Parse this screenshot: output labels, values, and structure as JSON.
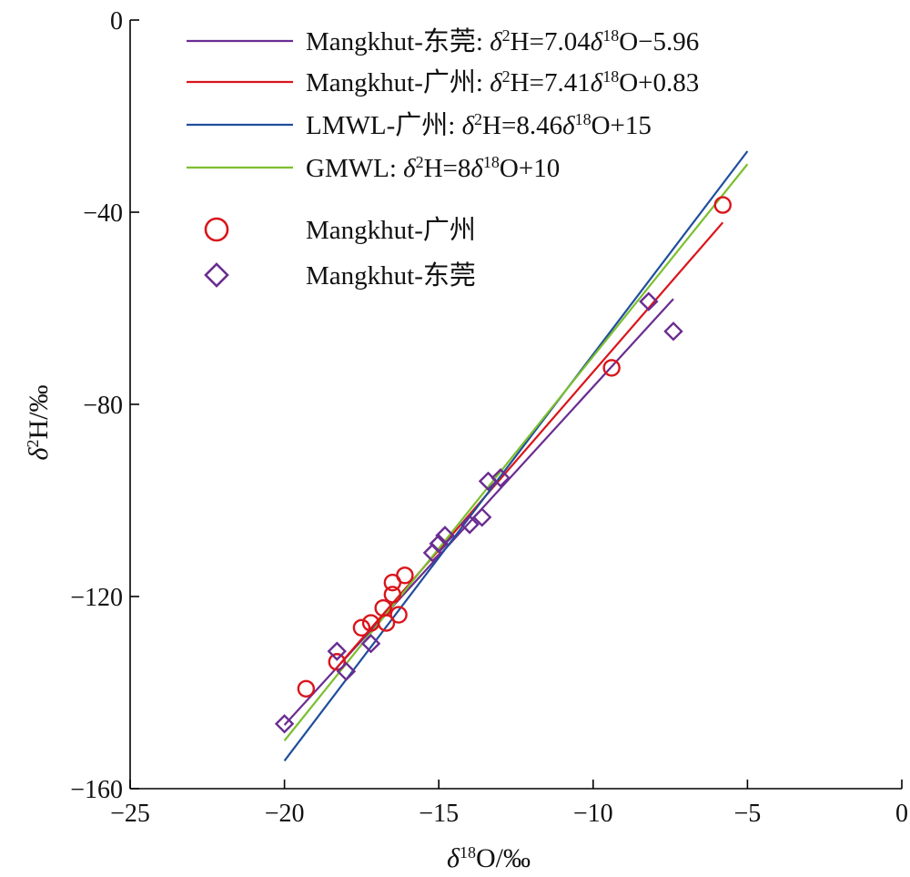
{
  "chart_data": {
    "type": "scatter",
    "xlabel": "δ¹⁸O/‰",
    "ylabel": "δ²H/‰",
    "xlim": [
      -25,
      0
    ],
    "ylim": [
      -160,
      0
    ],
    "xticks": [
      -25,
      -20,
      -15,
      -10,
      -5,
      0
    ],
    "yticks": [
      -160,
      -120,
      -80,
      -40,
      0
    ],
    "xtick_labels": [
      "−25",
      "−20",
      "−15",
      "−10",
      "−5",
      "0"
    ],
    "ytick_labels": [
      "−160",
      "−120",
      "−80",
      "−40",
      "0"
    ],
    "legend_position": "top-left",
    "lines": [
      {
        "name": "Mangkhut-东莞",
        "equation": "δ²H=7.04δ¹⁸O−5.96",
        "color": "#6a2c91",
        "slope": 7.04,
        "intercept": -5.96,
        "x_range": [
          -20.0,
          -7.4
        ]
      },
      {
        "name": "Mangkhut-广州",
        "equation": "δ²H=7.41δ¹⁸O+0.83",
        "color": "#d9151b",
        "slope": 7.41,
        "intercept": 0.83,
        "x_range": [
          -18.3,
          -5.8
        ]
      },
      {
        "name": "LMWL-广州",
        "equation": "δ²H=8.46δ¹⁸O+15",
        "color": "#1f4e9c",
        "slope": 8.46,
        "intercept": 15,
        "x_range": [
          -20.0,
          -5.0
        ]
      },
      {
        "name": "GMWL",
        "equation": "δ²H=8δ¹⁸O+10",
        "color": "#7cbf2e",
        "slope": 8,
        "intercept": 10,
        "x_range": [
          -20.0,
          -5.0
        ]
      }
    ],
    "series": [
      {
        "name": "Mangkhut-广州",
        "marker": "circle",
        "color": "#d9151b",
        "x": [
          -19.3,
          -18.3,
          -17.5,
          -17.2,
          -16.8,
          -16.7,
          -16.5,
          -16.5,
          -16.3,
          -16.1,
          -9.4,
          -5.8
        ],
        "y": [
          -139.2,
          -133.6,
          -126.5,
          -125.5,
          -122.4,
          -125.5,
          -119.6,
          -117.1,
          -123.8,
          -115.6,
          -72.4,
          -38.5
        ]
      },
      {
        "name": "Mangkhut-东莞",
        "marker": "diamond",
        "color": "#6a2c91",
        "x": [
          -20.0,
          -18.3,
          -18.0,
          -17.2,
          -15.2,
          -15.0,
          -14.8,
          -14.0,
          -13.6,
          -13.4,
          -13.0,
          -8.2,
          -7.4
        ],
        "y": [
          -146.5,
          -131.4,
          -135.6,
          -129.8,
          -110.9,
          -109.0,
          -107.3,
          -105.0,
          -103.5,
          -96.0,
          -95.3,
          -58.6,
          -64.8
        ]
      }
    ]
  }
}
